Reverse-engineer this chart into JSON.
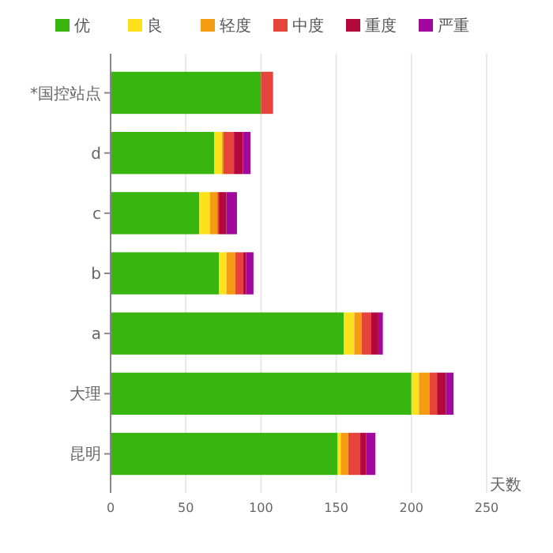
{
  "chart_data": {
    "type": "bar",
    "orientation": "horizontal",
    "stacked": true,
    "xlabel": "天数",
    "categories": [
      "*国控站点",
      "d",
      "c",
      "b",
      "a",
      "大理",
      "昆明"
    ],
    "series": [
      {
        "name": "优",
        "color": "#38b50e",
        "values": [
          100,
          69,
          59,
          72,
          155,
          200,
          151
        ]
      },
      {
        "name": "良",
        "color": "#fde21b",
        "values": [
          0,
          5,
          7,
          5,
          7,
          5,
          2
        ]
      },
      {
        "name": "轻度",
        "color": "#f59b12",
        "values": [
          0,
          1,
          5,
          6,
          5,
          7,
          5
        ]
      },
      {
        "name": "中度",
        "color": "#e6433a",
        "values": [
          8,
          7,
          1,
          5,
          6,
          5,
          8
        ]
      },
      {
        "name": "重度",
        "color": "#b3083c",
        "values": [
          0,
          6,
          5,
          2,
          5,
          6,
          4
        ]
      },
      {
        "name": "严重",
        "color": "#a0089e",
        "values": [
          0,
          5,
          7,
          5,
          3,
          5,
          6
        ]
      }
    ],
    "xlim": [
      0,
      250
    ],
    "xticks": [
      0,
      50,
      100,
      150,
      200,
      250
    ],
    "grid": "x",
    "legend": "top"
  }
}
